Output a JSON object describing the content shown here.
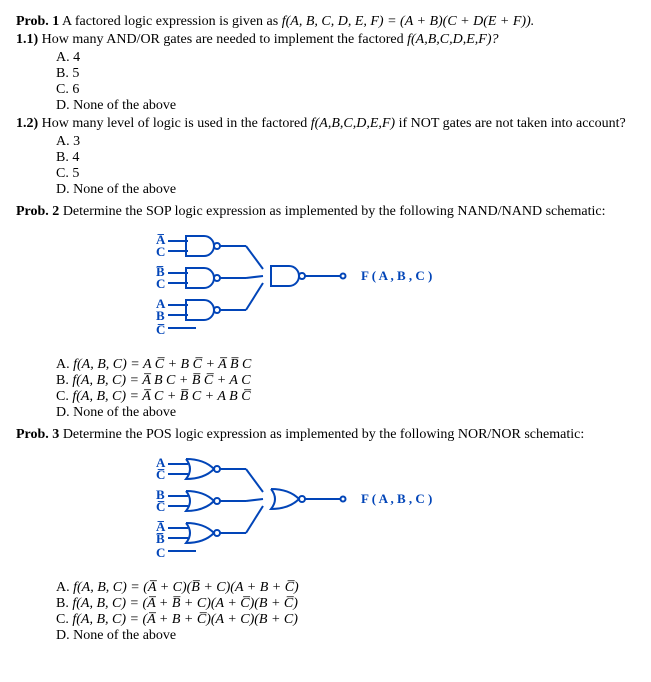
{
  "prob1": {
    "heading_prefix": "Prob. 1",
    "heading_rest": " A factored logic expression is given as ",
    "expr": "f(A, B, C, D, E, F) = (A + B)(C + D(E + F)).",
    "q1_1_prefix": "1.1)",
    "q1_1_rest": " How many AND/OR gates are needed to implement the factored ",
    "q1_1_tail": "f(A,B,C,D,E,F)?",
    "choices1": {
      "a": "A. 4",
      "b": "B. 5",
      "c": "C. 6",
      "d": "D. None of the above"
    },
    "q1_2_prefix": "1.2)",
    "q1_2_rest": " How many level of logic is used in the factored ",
    "q1_2_mid": "f(A,B,C,D,E,F)",
    "q1_2_tail": " if NOT gates are not taken into account?",
    "choices2": {
      "a": "A. 3",
      "b": "B. 4",
      "c": "C. 5",
      "d": "D. None of the above"
    }
  },
  "prob2": {
    "heading_prefix": "Prob. 2",
    "heading_rest": " Determine the SOP logic expression as implemented by the following NAND/NAND schematic:",
    "schematic": {
      "inputs": [
        {
          "top": "A̅",
          "bot": "C"
        },
        {
          "top": "B̅",
          "bot": "C"
        },
        {
          "top": "A",
          "bot": "B"
        }
      ],
      "extra_bottom": "C̅",
      "output_label": "F ( A , B , C )",
      "gate_stroke": "#0245b8",
      "line_color": "#0245b8",
      "text_color": "#0245b8"
    },
    "choices": {
      "a_pre": "A. ",
      "a": "f(A, B, C) = A C̅ + B C̅ + A̅ B̅ C",
      "b_pre": "B. ",
      "b": "f(A, B, C) = A̅ B C + B̅ C̅ + A C",
      "c_pre": "C. ",
      "c": "f(A, B, C) = A̅ C + B̅ C + A B C̅",
      "d": "D. None of the above"
    }
  },
  "prob3": {
    "heading_prefix": "Prob. 3",
    "heading_rest": " Determine the POS logic expression as implemented by the following NOR/NOR schematic:",
    "schematic": {
      "inputs": [
        {
          "top": "A",
          "bot": "C̅"
        },
        {
          "top": "B",
          "bot": "C̅"
        },
        {
          "top": "A̅",
          "bot": "B̅"
        }
      ],
      "extra_bottom": "C",
      "output_label": "F ( A , B , C )",
      "gate_stroke": "#0245b8",
      "line_color": "#0245b8",
      "text_color": "#0245b8"
    },
    "choices": {
      "a_pre": "A. ",
      "a": "f(A, B, C) = (A̅ + C)(B̅ + C)(A + B + C̅)",
      "b_pre": "B. ",
      "b": "f(A, B, C) = (A̅ + B̅ + C)(A + C̅)(B + C̅)",
      "c_pre": "C. ",
      "c": "f(A, B, C) = (A̅ + B + C̅)(A + C)(B + C)",
      "d": "D. None of the above"
    }
  }
}
